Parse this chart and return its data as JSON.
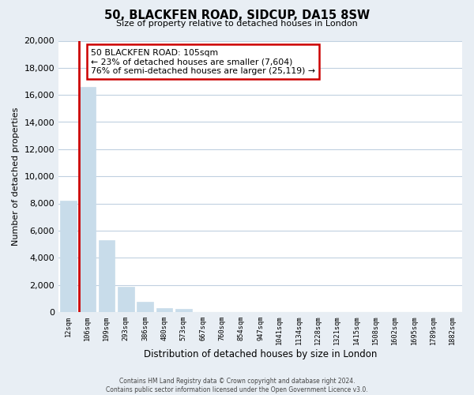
{
  "title": "50, BLACKFEN ROAD, SIDCUP, DA15 8SW",
  "subtitle": "Size of property relative to detached houses in London",
  "xlabel": "Distribution of detached houses by size in London",
  "ylabel": "Number of detached properties",
  "bar_labels": [
    "12sqm",
    "106sqm",
    "199sqm",
    "293sqm",
    "386sqm",
    "480sqm",
    "573sqm",
    "667sqm",
    "760sqm",
    "854sqm",
    "947sqm",
    "1041sqm",
    "1134sqm",
    "1228sqm",
    "1321sqm",
    "1415sqm",
    "1508sqm",
    "1602sqm",
    "1695sqm",
    "1789sqm",
    "1882sqm"
  ],
  "bar_values": [
    8200,
    16600,
    5300,
    1850,
    750,
    300,
    200,
    0,
    0,
    0,
    0,
    0,
    0,
    0,
    0,
    0,
    0,
    0,
    0,
    0,
    0
  ],
  "bar_color": "#c8dcea",
  "highlight_color": "#cc0000",
  "ylim": [
    0,
    20000
  ],
  "yticks": [
    0,
    2000,
    4000,
    6000,
    8000,
    10000,
    12000,
    14000,
    16000,
    18000,
    20000
  ],
  "annotation_title": "50 BLACKFEN ROAD: 105sqm",
  "annotation_line1": "← 23% of detached houses are smaller (7,604)",
  "annotation_line2": "76% of semi-detached houses are larger (25,119) →",
  "footer_line1": "Contains HM Land Registry data © Crown copyright and database right 2024.",
  "footer_line2": "Contains public sector information licensed under the Open Government Licence v3.0.",
  "bg_color": "#e8eef4",
  "plot_bg_color": "#ffffff",
  "grid_color": "#c0d0e0"
}
